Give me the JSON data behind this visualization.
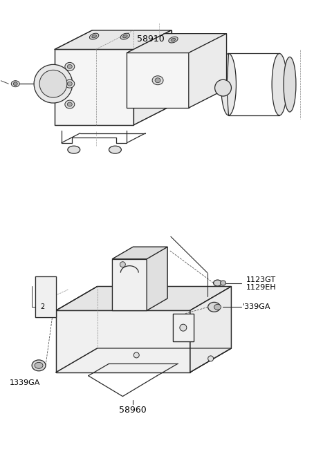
{
  "bg_color": "#ffffff",
  "lc": "#2a2a2a",
  "label_58910": "58910",
  "label_58960": "58960",
  "label_1123GT": "1123GT",
  "label_1129EH": "1129EH",
  "label_339GA": "'339GA",
  "label_1339GA": "1339GA",
  "fig_width": 4.8,
  "fig_height": 6.57,
  "dpi": 100
}
